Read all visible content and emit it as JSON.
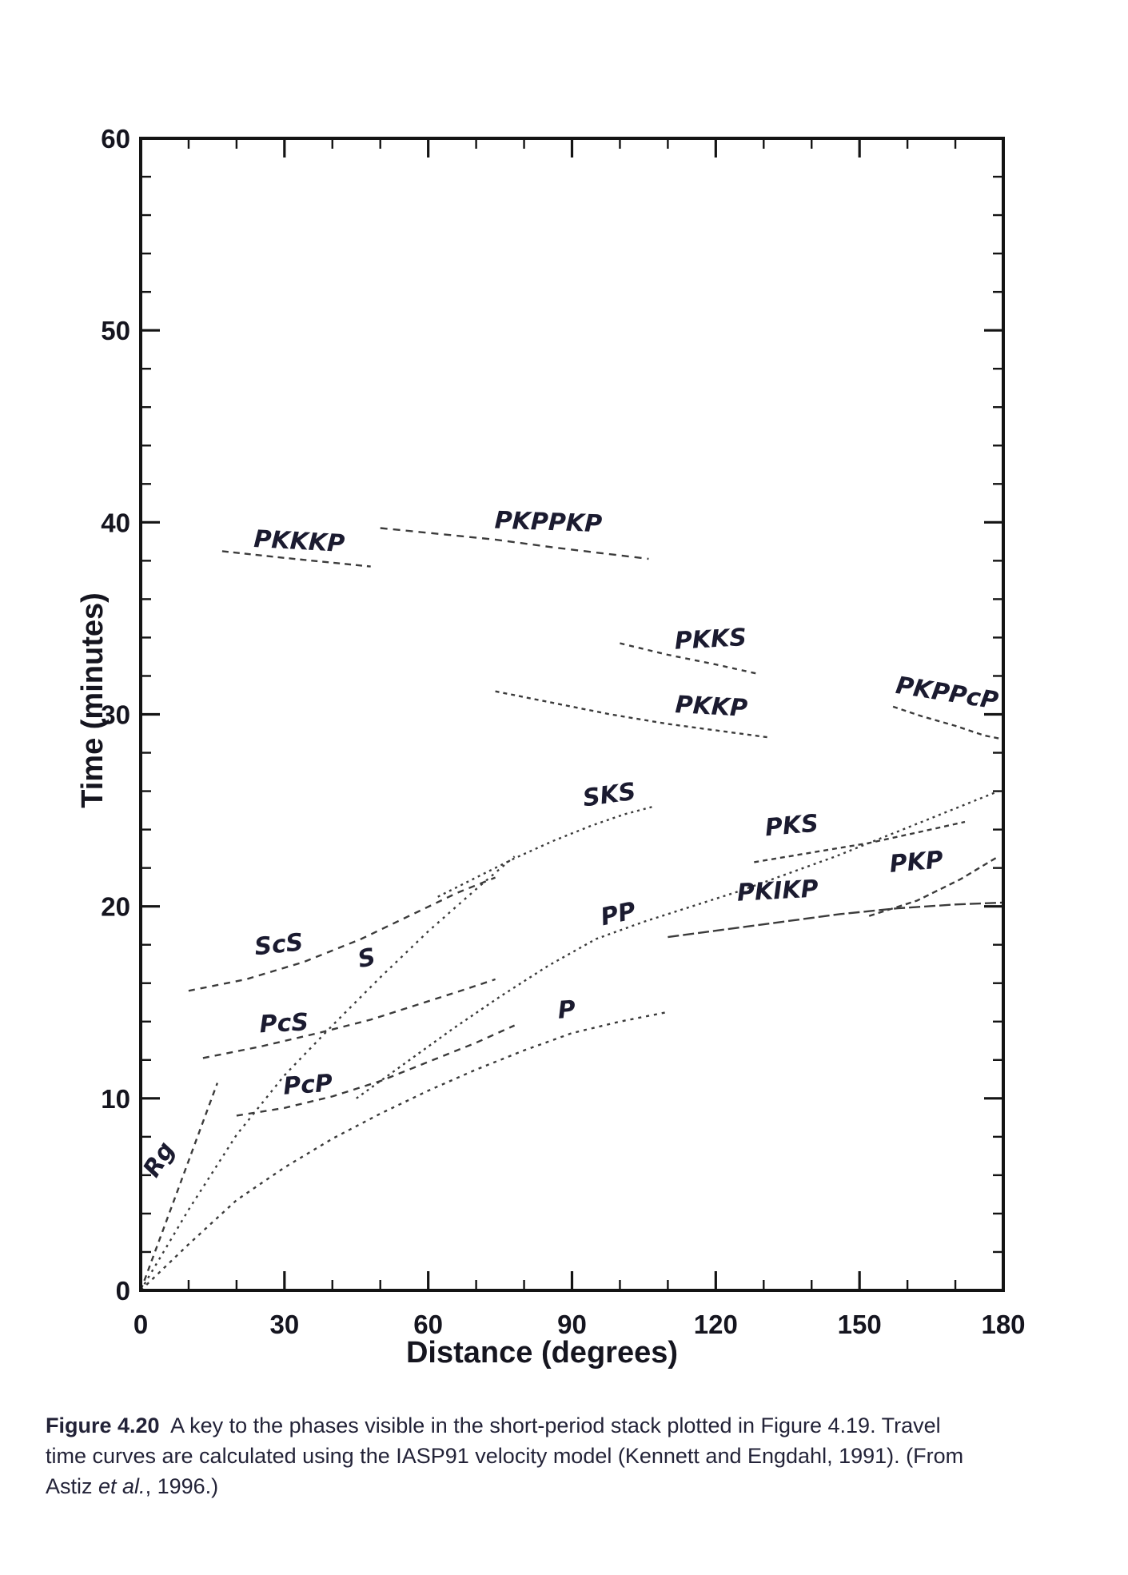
{
  "caption": {
    "label": "Figure 4.20",
    "line1_rest": "  A key to the phases visible in the short-period stack plotted in Figure 4.19. Travel",
    "line2": "time curves are calculated using the IASP91 velocity model (Kennett and Engdahl, 1991). (From",
    "line3_pre": "Astiz ",
    "line3_italic": "et al.",
    "line3_post": ", 1996.)"
  },
  "chart_data": {
    "type": "line",
    "title": "",
    "xlabel": "Distance (degrees)",
    "ylabel": "Time (minutes)",
    "xlim": [
      0,
      180
    ],
    "ylim": [
      0,
      60
    ],
    "grid": false,
    "legend": "none (labels placed along curves)",
    "x_major_ticks": [
      0,
      30,
      60,
      90,
      120,
      150,
      180
    ],
    "x_minor_step": 10,
    "y_major_ticks": [
      0,
      10,
      20,
      30,
      40,
      50,
      60
    ],
    "y_minor_step": 2,
    "series": [
      {
        "name": "Rg",
        "dash": "7 6",
        "points": [
          [
            0,
            0
          ],
          [
            4,
            2.7
          ],
          [
            8,
            5.4
          ],
          [
            12,
            8.1
          ],
          [
            16,
            10.8
          ]
        ]
      },
      {
        "name": "S",
        "dash": "3 6",
        "points": [
          [
            0,
            0
          ],
          [
            10,
            4.2
          ],
          [
            20,
            8.1
          ],
          [
            30,
            11.2
          ],
          [
            40,
            13.8
          ],
          [
            50,
            16.3
          ],
          [
            60,
            18.7
          ],
          [
            70,
            20.9
          ],
          [
            78,
            22.6
          ]
        ]
      },
      {
        "name": "P",
        "dash": "4 6",
        "points": [
          [
            0,
            0
          ],
          [
            10,
            2.4
          ],
          [
            20,
            4.7
          ],
          [
            30,
            6.4
          ],
          [
            40,
            7.9
          ],
          [
            50,
            9.2
          ],
          [
            60,
            10.4
          ],
          [
            70,
            11.5
          ],
          [
            80,
            12.5
          ],
          [
            90,
            13.4
          ],
          [
            100,
            14.0
          ],
          [
            110,
            14.5
          ]
        ]
      },
      {
        "name": "PP",
        "dash": "3 5",
        "points": [
          [
            45,
            10.0
          ],
          [
            55,
            11.8
          ],
          [
            65,
            13.6
          ],
          [
            75,
            15.3
          ],
          [
            85,
            16.9
          ],
          [
            95,
            18.3
          ],
          [
            105,
            19.2
          ],
          [
            115,
            20.0
          ],
          [
            125,
            20.8
          ],
          [
            135,
            21.7
          ],
          [
            145,
            22.6
          ],
          [
            155,
            23.6
          ],
          [
            165,
            24.6
          ],
          [
            172,
            25.3
          ],
          [
            179,
            26.0
          ]
        ]
      },
      {
        "name": "PcP",
        "dash": "8 7",
        "points": [
          [
            20,
            9.1
          ],
          [
            30,
            9.5
          ],
          [
            40,
            10.1
          ],
          [
            50,
            10.9
          ],
          [
            60,
            11.9
          ],
          [
            70,
            12.9
          ],
          [
            78,
            13.8
          ]
        ]
      },
      {
        "name": "PcS",
        "dash": "8 7",
        "points": [
          [
            13,
            12.1
          ],
          [
            25,
            12.7
          ],
          [
            37,
            13.4
          ],
          [
            48,
            14.1
          ],
          [
            58,
            14.9
          ],
          [
            68,
            15.7
          ],
          [
            74,
            16.2
          ]
        ]
      },
      {
        "name": "ScS",
        "dash": "8 7",
        "points": [
          [
            10,
            15.6
          ],
          [
            22,
            16.2
          ],
          [
            34,
            17.1
          ],
          [
            46,
            18.3
          ],
          [
            56,
            19.5
          ],
          [
            66,
            20.7
          ],
          [
            74,
            21.5
          ]
        ]
      },
      {
        "name": "SKS",
        "dash": "3 5",
        "points": [
          [
            62,
            20.5
          ],
          [
            70,
            21.5
          ],
          [
            78,
            22.5
          ],
          [
            86,
            23.4
          ],
          [
            94,
            24.2
          ],
          [
            101,
            24.8
          ],
          [
            107,
            25.2
          ]
        ]
      },
      {
        "name": "PKS",
        "dash": "6 5",
        "points": [
          [
            128,
            22.3
          ],
          [
            140,
            22.8
          ],
          [
            152,
            23.3
          ],
          [
            163,
            23.9
          ],
          [
            172,
            24.4
          ]
        ]
      },
      {
        "name": "PKIKP",
        "dash": "14 5",
        "points": [
          [
            110,
            18.4
          ],
          [
            122,
            18.8
          ],
          [
            134,
            19.2
          ],
          [
            146,
            19.6
          ],
          [
            158,
            19.9
          ],
          [
            170,
            20.1
          ],
          [
            180,
            20.2
          ]
        ]
      },
      {
        "name": "PKP",
        "dash": "7 5",
        "points": [
          [
            152,
            19.5
          ],
          [
            162,
            20.3
          ],
          [
            171,
            21.4
          ],
          [
            179,
            22.6
          ]
        ]
      },
      {
        "name": "PKKP",
        "dash": "5 5",
        "points": [
          [
            74,
            31.2
          ],
          [
            86,
            30.6
          ],
          [
            98,
            30.0
          ],
          [
            110,
            29.5
          ],
          [
            122,
            29.1
          ],
          [
            131,
            28.8
          ]
        ]
      },
      {
        "name": "PKKS",
        "dash": "6 6",
        "points": [
          [
            100,
            33.7
          ],
          [
            110,
            33.1
          ],
          [
            120,
            32.6
          ],
          [
            129,
            32.1
          ]
        ]
      },
      {
        "name": "PKKKP",
        "dash": "8 6",
        "points": [
          [
            17,
            38.5
          ],
          [
            28,
            38.2
          ],
          [
            40,
            37.9
          ],
          [
            48,
            37.7
          ]
        ]
      },
      {
        "name": "PKPPKP",
        "dash": "9 7",
        "points": [
          [
            50,
            39.7
          ],
          [
            62,
            39.4
          ],
          [
            74,
            39.1
          ],
          [
            86,
            38.7
          ],
          [
            96,
            38.4
          ],
          [
            106,
            38.1
          ]
        ]
      },
      {
        "name": "PKPPcP",
        "dash": "6 5",
        "points": [
          [
            157,
            30.4
          ],
          [
            163,
            29.9
          ],
          [
            170,
            29.4
          ],
          [
            176,
            28.9
          ],
          [
            180,
            28.7
          ]
        ]
      }
    ],
    "phase_labels": [
      {
        "text": "Rg",
        "deg": 5.2,
        "min": 6.6,
        "rot": -58
      },
      {
        "text": "P",
        "deg": 89,
        "min": 14.2,
        "rot": -4
      },
      {
        "text": "PcP",
        "deg": 35,
        "min": 10.3,
        "rot": -4
      },
      {
        "text": "PcS",
        "deg": 30,
        "min": 13.5,
        "rot": -3
      },
      {
        "text": "S",
        "deg": 47.5,
        "min": 16.9,
        "rot": -12
      },
      {
        "text": "ScS",
        "deg": 29,
        "min": 17.6,
        "rot": -6
      },
      {
        "text": "PP",
        "deg": 100,
        "min": 19.2,
        "rot": -12
      },
      {
        "text": "SKS",
        "deg": 98,
        "min": 25.4,
        "rot": -8
      },
      {
        "text": "PKIKP",
        "deg": 133,
        "min": 20.4,
        "rot": -3
      },
      {
        "text": "PKP",
        "deg": 162,
        "min": 21.9,
        "rot": -5
      },
      {
        "text": "PKS",
        "deg": 136,
        "min": 23.8,
        "rot": -5
      },
      {
        "text": "PKKP",
        "deg": 119,
        "min": 30.0,
        "rot": 3
      },
      {
        "text": "PKKS",
        "deg": 119,
        "min": 33.5,
        "rot": -3
      },
      {
        "text": "PKKKP",
        "deg": 33,
        "min": 38.6,
        "rot": 3
      },
      {
        "text": "PKPPKP",
        "deg": 85,
        "min": 39.6,
        "rot": 2
      },
      {
        "text": "PKPPcP",
        "deg": 168,
        "min": 30.7,
        "rot": 9
      }
    ]
  }
}
